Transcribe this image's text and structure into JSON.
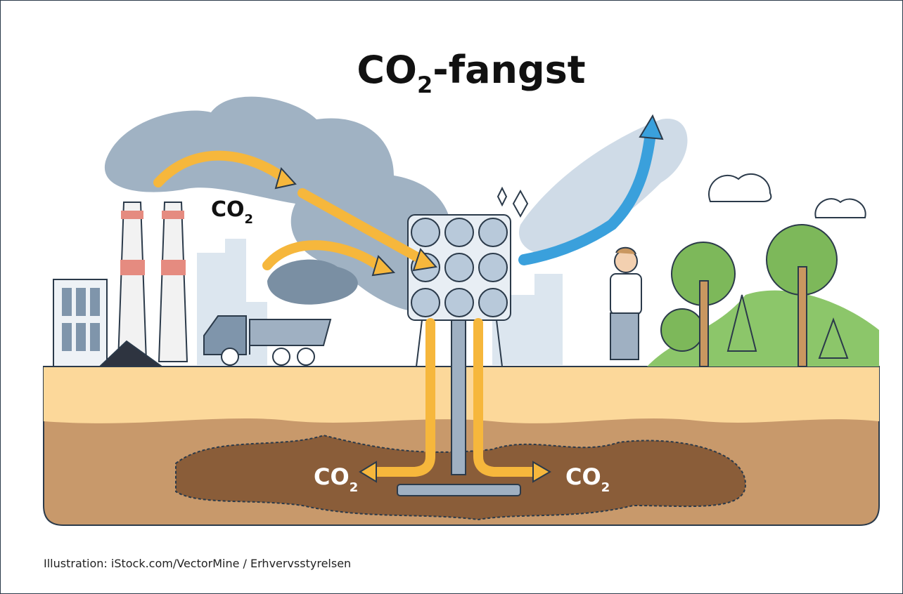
{
  "title": {
    "main": "CO",
    "sub": "2",
    "rest": "-fangst"
  },
  "labels": [
    {
      "main": "CO",
      "sub": "2"
    },
    {
      "main": "CO",
      "sub": "2"
    },
    {
      "main": "CO",
      "sub": "2"
    }
  ],
  "caption": "Illustration: iStock.com/VectorMine / Erhvervsstyrelsen"
}
